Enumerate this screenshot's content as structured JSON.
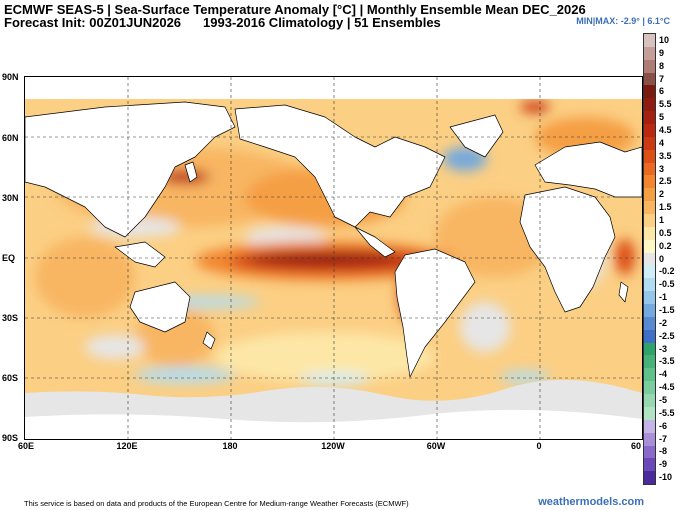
{
  "header": {
    "title": "ECMWF SEAS-5 | Sea-Surface Temperature Anomaly [°C] | Monthly Ensemble Mean DEC_2026",
    "init": "Forecast Init: 00Z01JUN2026",
    "climatology": "1993-2016 Climatology | 51 Ensembles",
    "minmax": "MIN|MAX: -2.9° | 6.1°C"
  },
  "map": {
    "lat_labels": [
      "90N",
      "60N",
      "30N",
      "EQ",
      "30S",
      "60S",
      "90S"
    ],
    "lon_labels": [
      "60E",
      "120E",
      "180",
      "120W",
      "60W",
      "0",
      "60"
    ]
  },
  "legend": {
    "labels": [
      "10",
      "9",
      "8",
      "7",
      "6",
      "5.5",
      "5",
      "4.5",
      "4",
      "3.5",
      "3",
      "2.5",
      "2",
      "1.5",
      "1",
      "0.5",
      "0.2",
      "0",
      "-0.2",
      "-0.5",
      "-1",
      "-1.5",
      "-2",
      "-2.5",
      "-3",
      "-3.5",
      "-4",
      "-4.5",
      "-5",
      "-5.5",
      "-6",
      "-7",
      "-8",
      "-9",
      "-10"
    ],
    "colors": [
      "#d8c2bf",
      "#c49f9a",
      "#ad7c75",
      "#8a5048",
      "#7a1a10",
      "#8f1c10",
      "#a52010",
      "#bb2812",
      "#cc3a14",
      "#dc5018",
      "#e96a22",
      "#f2852e",
      "#f59f45",
      "#f8b662",
      "#fbcf84",
      "#fde7a7",
      "#fff7c4",
      "#e6e6e6",
      "#cfeef8",
      "#b2ddf0",
      "#93c6e8",
      "#74a9dd",
      "#568bd2",
      "#3f6fc6",
      "#2fa36c",
      "#46b178",
      "#5fc08a",
      "#7acd9c",
      "#96d9b0",
      "#b0e3c4",
      "#c5b4e6",
      "#a890d8",
      "#8a6ac9",
      "#6b49b8",
      "#4b2a9e"
    ]
  },
  "footer": {
    "disclaimer": "This service is based on data and products of the European Centre for Medium-range Weather Forecasts (ECMWF)",
    "brand": "weathermodels.com"
  }
}
